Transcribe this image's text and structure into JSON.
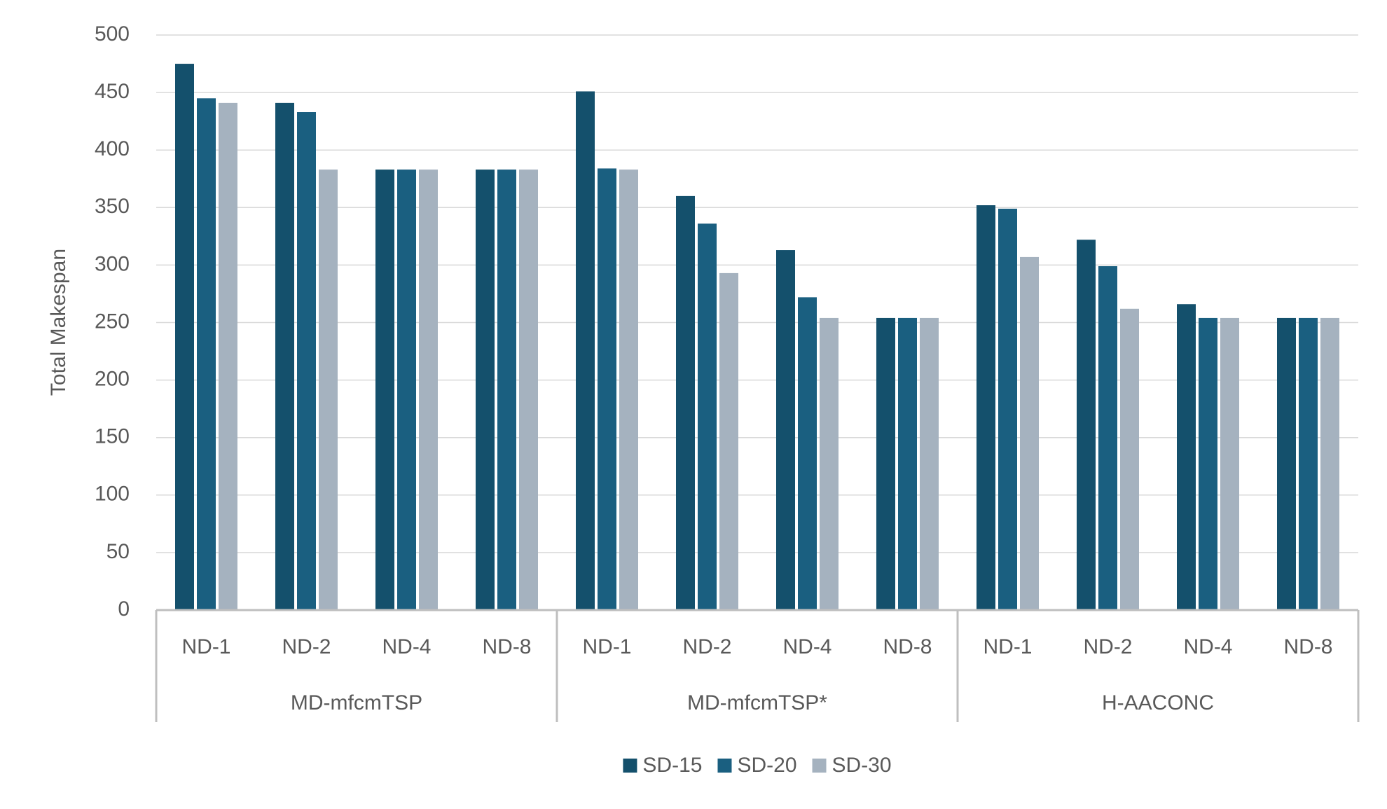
{
  "chart_data": {
    "type": "bar",
    "y_label": "Total Makespan",
    "categories": [
      "ND-1",
      "ND-2",
      "ND-4",
      "ND-8",
      "ND-1",
      "ND-2",
      "ND-4",
      "ND-8",
      "ND-1",
      "ND-2",
      "ND-4",
      "ND-8"
    ],
    "groups": [
      "MD-mfcmTSP",
      "MD-mfcmTSP*",
      "H-AACONC"
    ],
    "series": [
      {
        "name": "SD-15",
        "color": "#14506c",
        "values": [
          475,
          441,
          383,
          383,
          451,
          360,
          313,
          254,
          352,
          322,
          266,
          254
        ]
      },
      {
        "name": "SD-20",
        "color": "#1a5f80",
        "values": [
          445,
          433,
          383,
          383,
          384,
          336,
          272,
          254,
          349,
          299,
          254,
          254
        ]
      },
      {
        "name": "SD-30",
        "color": "#a5b2bf",
        "values": [
          441,
          383,
          383,
          383,
          383,
          293,
          254,
          254,
          307,
          262,
          254,
          254
        ]
      }
    ],
    "ylim": [
      0,
      500
    ],
    "yticks": [
      0,
      50,
      100,
      150,
      200,
      250,
      300,
      350,
      400,
      450,
      500
    ],
    "grid": true,
    "legend": "bottom"
  }
}
